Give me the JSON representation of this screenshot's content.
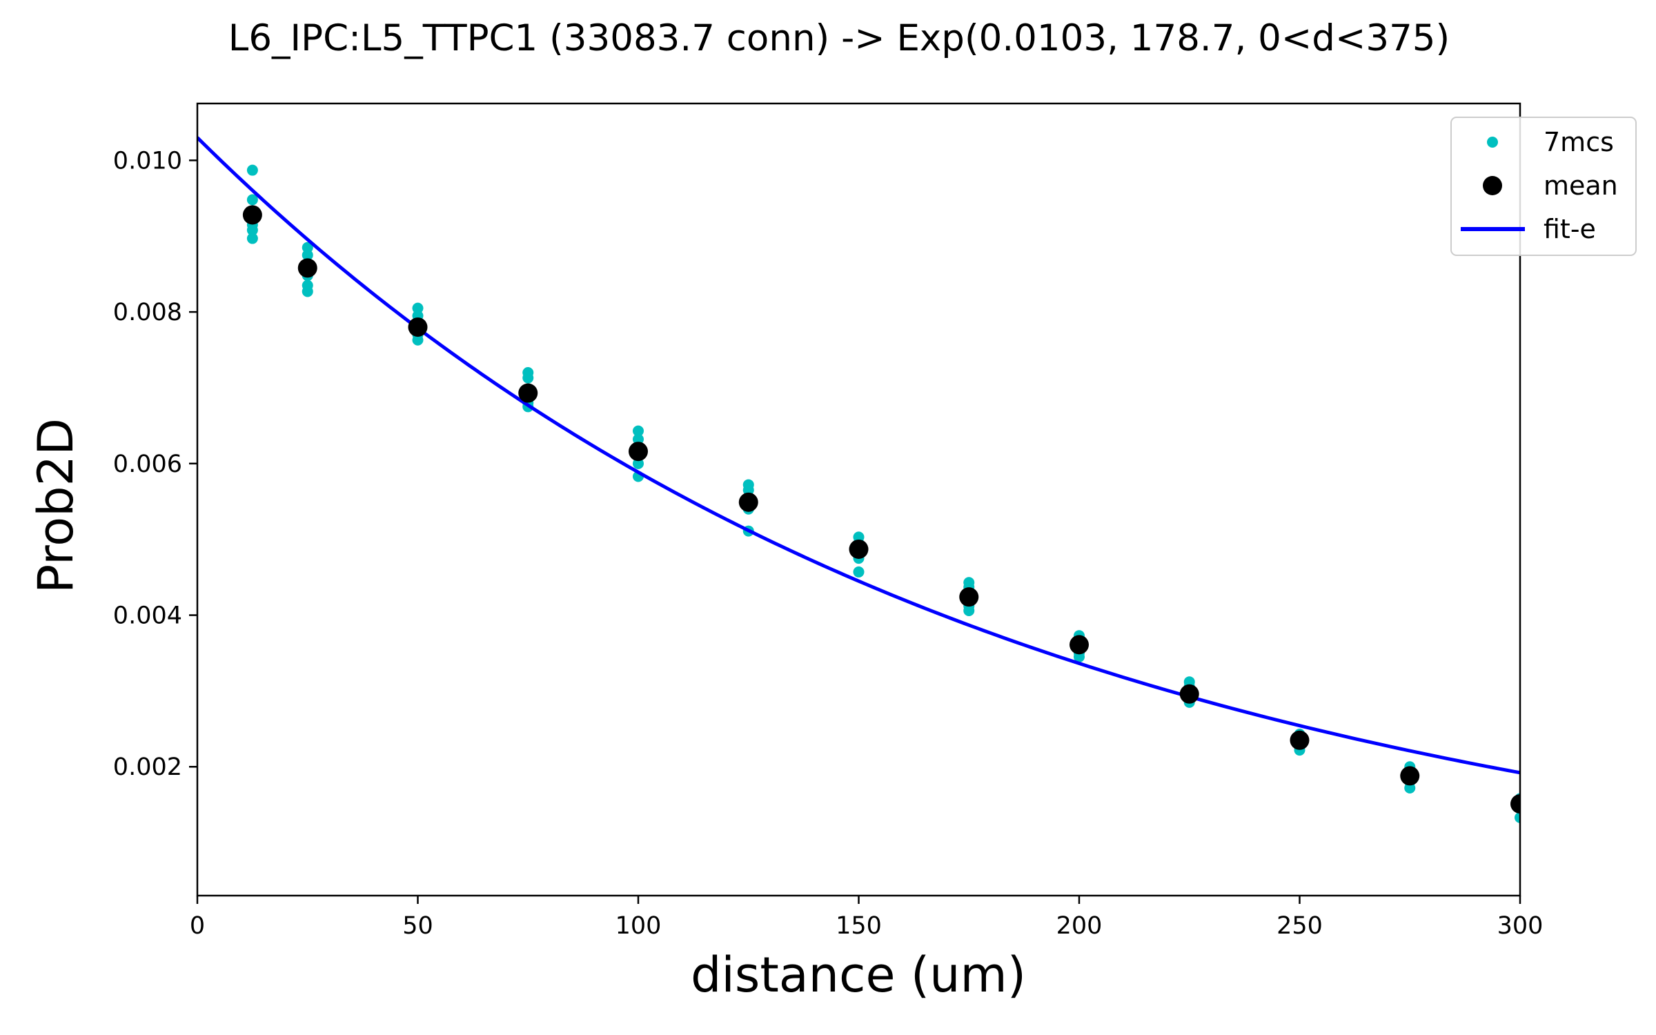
{
  "chart_data": {
    "type": "scatter",
    "title": "L6_IPC:L5_TTPC1 (33083.7 conn) -> Exp(0.0103, 178.7, 0<d<375)",
    "xlabel": "distance (um)",
    "ylabel": "Prob2D",
    "xlim": [
      0,
      300
    ],
    "ylim": [
      0.0003,
      0.01075
    ],
    "xticks": [
      0,
      50,
      100,
      150,
      200,
      250,
      300
    ],
    "xtick_labels": [
      "0",
      "50",
      "100",
      "150",
      "200",
      "250",
      "300"
    ],
    "yticks": [
      0.002,
      0.004,
      0.006,
      0.008,
      0.01
    ],
    "ytick_labels": [
      "0.002",
      "0.004",
      "0.006",
      "0.008",
      "0.010"
    ],
    "grid": false,
    "legend_position": "top-right",
    "legend": [
      "7mcs",
      "mean",
      "fit-e"
    ],
    "colors": {
      "samples": "#00bfbf",
      "mean": "#000000",
      "fit": "#0000ff"
    },
    "series": [
      {
        "name": "7mcs",
        "marker": "small-dot",
        "x": [
          12.5,
          12.5,
          12.5,
          12.5,
          12.5,
          12.5,
          12.5,
          25,
          25,
          25,
          25,
          25,
          25,
          25,
          50,
          50,
          50,
          50,
          50,
          50,
          50,
          75,
          75,
          75,
          75,
          75,
          75,
          75,
          100,
          100,
          100,
          100,
          100,
          100,
          100,
          125,
          125,
          125,
          125,
          125,
          125,
          125,
          150,
          150,
          150,
          150,
          150,
          150,
          150,
          175,
          175,
          175,
          175,
          175,
          175,
          175,
          200,
          200,
          200,
          200,
          200,
          200,
          200,
          225,
          225,
          225,
          225,
          225,
          225,
          225,
          250,
          250,
          250,
          250,
          250,
          250,
          250,
          275,
          275,
          275,
          275,
          275,
          275,
          275,
          300,
          300,
          300,
          300,
          300,
          300,
          300
        ],
        "y": [
          0.00987,
          0.00948,
          0.0093,
          0.00915,
          0.00908,
          0.00897,
          0.00925,
          0.00885,
          0.00875,
          0.00862,
          0.00848,
          0.00835,
          0.00827,
          0.00858,
          0.00805,
          0.00795,
          0.00785,
          0.00778,
          0.0077,
          0.00763,
          0.0078,
          0.0072,
          0.00713,
          0.00698,
          0.0069,
          0.0068,
          0.00675,
          0.00695,
          0.00643,
          0.00632,
          0.0062,
          0.0061,
          0.006,
          0.00583,
          0.00615,
          0.00572,
          0.00565,
          0.00555,
          0.00548,
          0.0054,
          0.00511,
          0.0055,
          0.00503,
          0.00495,
          0.00488,
          0.00482,
          0.00475,
          0.00457,
          0.00487,
          0.00443,
          0.00437,
          0.00425,
          0.00418,
          0.00412,
          0.00406,
          0.00423,
          0.00373,
          0.00368,
          0.0036,
          0.00355,
          0.0035,
          0.00345,
          0.0036,
          0.00312,
          0.00306,
          0.00298,
          0.00293,
          0.0029,
          0.00285,
          0.00296,
          0.00243,
          0.0024,
          0.00235,
          0.0023,
          0.00227,
          0.00222,
          0.00236,
          0.002,
          0.00195,
          0.0019,
          0.00185,
          0.0018,
          0.00172,
          0.00188,
          0.00158,
          0.00155,
          0.00152,
          0.00148,
          0.00145,
          0.00133,
          0.0015
        ]
      },
      {
        "name": "mean",
        "marker": "large-dot",
        "x": [
          12.5,
          25,
          50,
          75,
          100,
          125,
          150,
          175,
          200,
          225,
          250,
          275,
          300
        ],
        "y": [
          0.00928,
          0.00858,
          0.0078,
          0.00693,
          0.00616,
          0.00549,
          0.00487,
          0.00424,
          0.00361,
          0.00296,
          0.00235,
          0.00188,
          0.00151
        ]
      },
      {
        "name": "fit-e",
        "type": "line",
        "function": "exponential",
        "params": {
          "a": 0.0103,
          "lambda": 178.7
        },
        "x_range": [
          0,
          300
        ]
      }
    ]
  }
}
